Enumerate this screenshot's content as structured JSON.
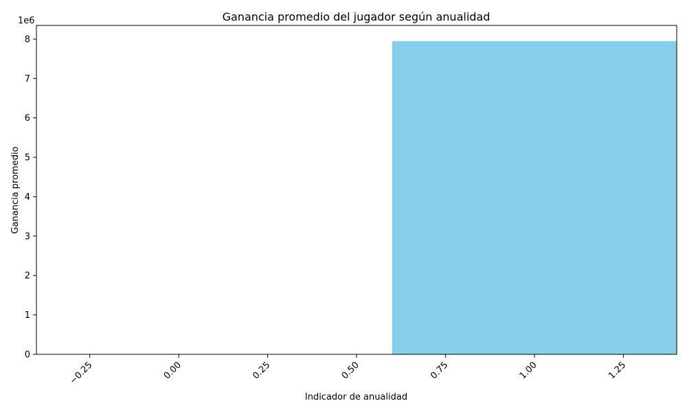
{
  "chart_data": {
    "type": "bar",
    "title": "Ganancia promedio del jugador según anualidad",
    "xlabel": "Indicador de anualidad",
    "ylabel": "Ganancia promedio",
    "y_offset_text": "1e6",
    "bar_width": 0.8,
    "x": [
      1
    ],
    "values": [
      7950000
    ],
    "xlim": [
      -0.4,
      1.4
    ],
    "ylim": [
      0,
      8347500
    ],
    "x_ticks": [
      -0.25,
      0.0,
      0.25,
      0.5,
      0.75,
      1.0,
      1.25
    ],
    "x_tick_labels": [
      "−0.25",
      "0.00",
      "0.25",
      "0.50",
      "0.75",
      "1.00",
      "1.25"
    ],
    "y_ticks": [
      0,
      1000000,
      2000000,
      3000000,
      4000000,
      5000000,
      6000000,
      7000000,
      8000000
    ],
    "y_tick_labels": [
      "0",
      "1",
      "2",
      "3",
      "4",
      "5",
      "6",
      "7",
      "8"
    ],
    "bar_color": "#87CEEB",
    "grid": false,
    "legend": "none"
  }
}
